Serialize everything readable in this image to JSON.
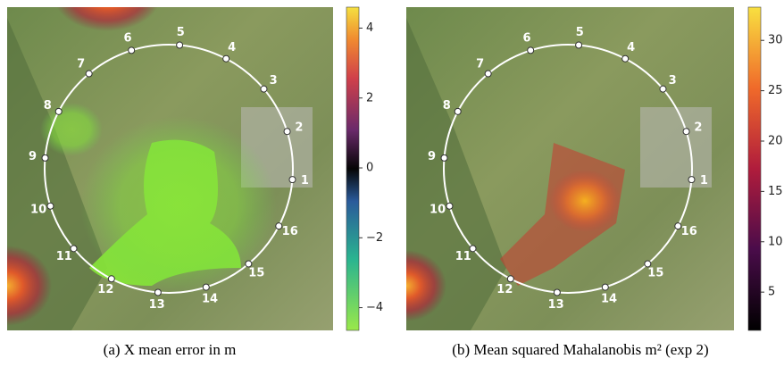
{
  "waypoints": [
    "1",
    "2",
    "3",
    "4",
    "5",
    "6",
    "7",
    "8",
    "9",
    "10",
    "11",
    "12",
    "13",
    "14",
    "15",
    "16"
  ],
  "panels": [
    {
      "caption": "(a) X mean error in m",
      "colorbar": {
        "lim": [
          -4.65,
          4.6
        ],
        "ticks": [
          4,
          2,
          0,
          {
            "value": -2,
            "label": "−2"
          },
          {
            "value": -4,
            "label": "−4"
          }
        ]
      }
    },
    {
      "caption": "(b) Mean squared Mahalanobis m² (exp 2)",
      "colorbar": {
        "lim": [
          1.2,
          33.3
        ],
        "ticks": [
          5,
          10,
          15,
          20,
          25,
          30
        ]
      }
    }
  ]
}
